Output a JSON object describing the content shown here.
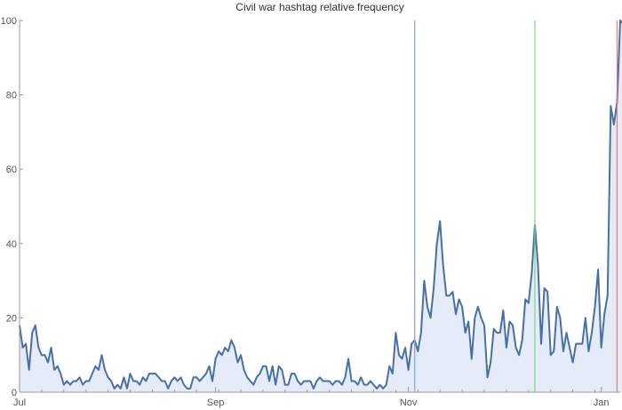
{
  "chart_data": {
    "type": "area",
    "title": "Civil war hashtag relative frequency",
    "xlabel": "",
    "ylabel": "",
    "x_range": [
      "2020-07-01",
      "2021-01-07"
    ],
    "ylim": [
      0,
      100
    ],
    "yticks": [
      0,
      20,
      40,
      60,
      80,
      100
    ],
    "xticks": [
      {
        "date": "2020-07-01",
        "label": "Jul"
      },
      {
        "date": "2020-09-01",
        "label": "Sep"
      },
      {
        "date": "2020-11-01",
        "label": "Nov"
      },
      {
        "date": "2021-01-01",
        "label": "Jan"
      }
    ],
    "grid": false,
    "legend": "none",
    "colors": {
      "line": "#4a6fa5",
      "fill": "#e3ecf8",
      "axis": "#999999",
      "vline_blue": "#8a9fd6",
      "vline_green": "#7fd67f",
      "vline_red": "#e87a7a"
    },
    "vertical_lines": [
      {
        "date": "2020-11-03",
        "color": "vline_blue"
      },
      {
        "date": "2020-12-11",
        "color": "vline_green"
      },
      {
        "date": "2021-01-06",
        "color": "vline_red"
      }
    ],
    "series": [
      {
        "start_date": "2020-07-01",
        "values": [
          18,
          12,
          13,
          6,
          16,
          18,
          12,
          10,
          10,
          8,
          12,
          6,
          7,
          5,
          2,
          3,
          2,
          3,
          3,
          4,
          2,
          3,
          3,
          5,
          7,
          6,
          10,
          6,
          4,
          3,
          1,
          2,
          1,
          4,
          1,
          5,
          3,
          3,
          2,
          4,
          3,
          5,
          5,
          5,
          4,
          3,
          3,
          1,
          3,
          4,
          3,
          4,
          2,
          1,
          1,
          4,
          4,
          3,
          4,
          5,
          7,
          3,
          9,
          11,
          10,
          12,
          11,
          14,
          12,
          8,
          10,
          6,
          4,
          3,
          2,
          4,
          5,
          7,
          7,
          3,
          7,
          2,
          7,
          6,
          2,
          2,
          5,
          5,
          3,
          2,
          3,
          3,
          3,
          1,
          3,
          4,
          3,
          3,
          3,
          2,
          3,
          3,
          2,
          4,
          9,
          3,
          3,
          2,
          4,
          2,
          2,
          3,
          2,
          1,
          2,
          1,
          2,
          7,
          5,
          16,
          10,
          9,
          12,
          6,
          13,
          14,
          11,
          16,
          30,
          23,
          20,
          28,
          40,
          46,
          34,
          26,
          26,
          27,
          21,
          25,
          23,
          16,
          19,
          9,
          20,
          23,
          20,
          18,
          4,
          8,
          17,
          16,
          16,
          22,
          12,
          19,
          18,
          12,
          10,
          14,
          25,
          24,
          32,
          45,
          34,
          13,
          28,
          27,
          10,
          11,
          23,
          20,
          11,
          16,
          12,
          8,
          13,
          13,
          13,
          20,
          11,
          16,
          23,
          33,
          12,
          21,
          26,
          77,
          72,
          78,
          100,
          99
        ]
      }
    ]
  }
}
